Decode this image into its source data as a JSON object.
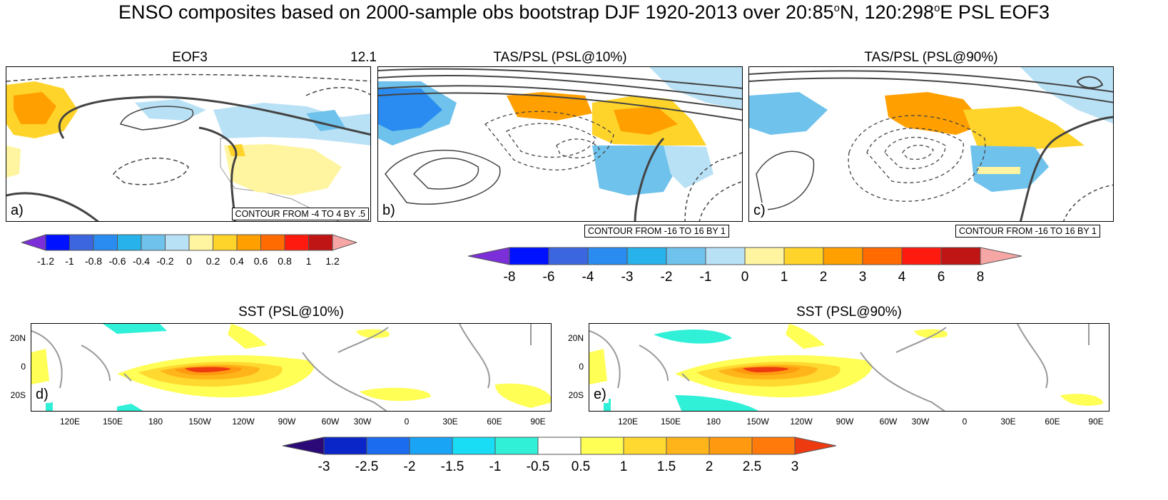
{
  "figure": {
    "title_parts": [
      "ENSO composites based on 2000-sample obs bootstrap DJF 1920-2013 over 20:85",
      "o",
      "N, 120:298",
      "o",
      "E PSL EOF3"
    ]
  },
  "panels": {
    "a": {
      "title": "EOF3",
      "value": "12.1",
      "label": "a)",
      "contour_info": "CONTOUR FROM -4 TO 4 BY .5"
    },
    "b": {
      "title": "TAS/PSL (PSL@10%)",
      "label": "b)",
      "contour_info": "CONTOUR FROM -16 TO 16 BY 1"
    },
    "c": {
      "title": "TAS/PSL (PSL@90%)",
      "label": "c)",
      "contour_info": "CONTOUR FROM -16 TO 16 BY 1"
    },
    "d": {
      "title": "SST (PSL@10%)",
      "label": "d)"
    },
    "e": {
      "title": "SST (PSL@90%)",
      "label": "e)"
    }
  },
  "sst_axes": {
    "y_ticks": [
      "20N",
      "0",
      "20S"
    ],
    "x_ticks": [
      "120E",
      "150E",
      "180",
      "150W",
      "120W",
      "90W",
      "60W",
      "30W",
      "0",
      "30E",
      "60E",
      "90E"
    ]
  },
  "colorbars": {
    "eof": {
      "labels": [
        "-1.2",
        "-1",
        "-0.8",
        "-0.6",
        "-0.4",
        "-0.2",
        "0",
        "0.2",
        "0.4",
        "0.6",
        "0.8",
        "1",
        "1.2"
      ],
      "colors": [
        "#7b2fd8",
        "#0011ff",
        "#3c65e0",
        "#2a8cf0",
        "#27b2ec",
        "#6fc2ec",
        "#b9e1f5",
        "#fff5a0",
        "#ffd42a",
        "#ffa000",
        "#ff6b00",
        "#ff1a10",
        "#c01515",
        "#f7a6a6"
      ]
    },
    "tas": {
      "labels": [
        "-8",
        "-6",
        "-4",
        "-3",
        "-2",
        "-1",
        "0",
        "1",
        "2",
        "3",
        "4",
        "6",
        "8"
      ],
      "colors": [
        "#7b2fd8",
        "#0011ff",
        "#3c65e0",
        "#2a8cf0",
        "#27b2ec",
        "#6fc2ec",
        "#b9e1f5",
        "#fff5a0",
        "#ffd42a",
        "#ffa000",
        "#ff6b00",
        "#ff1a10",
        "#c01515",
        "#f7a6a6"
      ]
    },
    "sst": {
      "labels": [
        "-3",
        "-2.5",
        "-2",
        "-1.5",
        "-1",
        "-0.5",
        "0.5",
        "1",
        "1.5",
        "2",
        "2.5",
        "3"
      ],
      "colors": [
        "#2b0a78",
        "#0a25c8",
        "#1c6cf0",
        "#19a4f5",
        "#19dcf5",
        "#30f0d8",
        "#ffffff",
        "#ffff55",
        "#ffd830",
        "#ffb51a",
        "#ff9a10",
        "#ff7a0a",
        "#ee3a10"
      ]
    }
  }
}
